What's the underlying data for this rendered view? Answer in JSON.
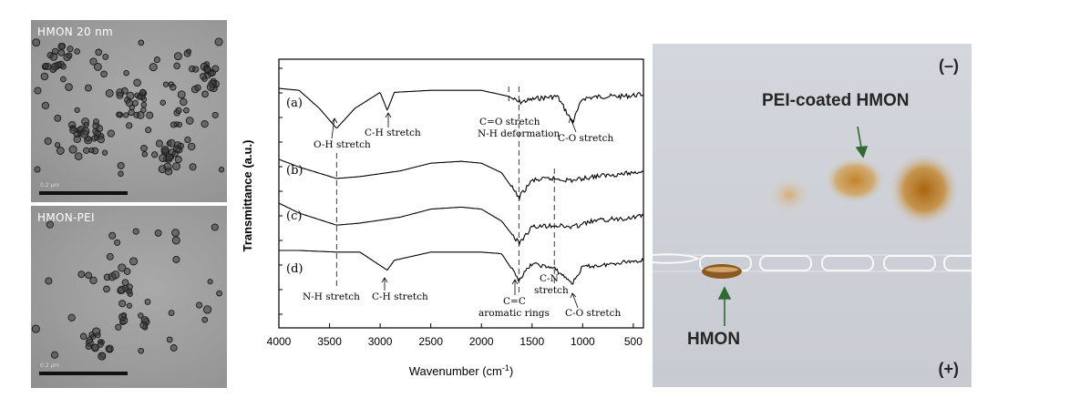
{
  "tem_panels": {
    "top": {
      "label": "HMON 20 nm",
      "scale_text": "0.2 μm"
    },
    "bottom": {
      "label": "HMON-PEI",
      "scale_text": "0.2 μm"
    }
  },
  "ftir": {
    "ylabel": "Transmittance (a.u.)",
    "xlabel_main": "Wavenumber (cm",
    "xlabel_sup": "-1",
    "xlabel_end": ")",
    "x_ticks": [
      "4000",
      "3500",
      "3000",
      "2500",
      "2000",
      "1500",
      "1000",
      "500"
    ],
    "spectrum_labels": [
      "(a)",
      "(b)",
      "(c)",
      "(d)"
    ],
    "annotations": {
      "oh_stretch": "O-H stretch",
      "ch_stretch_a": "C-H stretch",
      "co_stretch_a_l1": "C=O stretch",
      "co_stretch_a_l2": "N-H deformation",
      "c_o_stretch_a": "C-O stretch",
      "nh_stretch_d": "N-H stretch",
      "ch_stretch_d": "C-H stretch",
      "cc_d_l1": "C=C",
      "cc_d_l2": "aromatic rings",
      "cn_d_l1": "C-N",
      "cn_d_l2": "stretch",
      "c_o_stretch_d": "C-O stretch"
    }
  },
  "chart_data": {
    "type": "line",
    "xlabel": "Wavenumber (cm-1)",
    "ylabel": "Transmittance (a.u.)",
    "xlim": [
      4000,
      400
    ],
    "x_ticks": [
      4000,
      3500,
      3000,
      2500,
      2000,
      1500,
      1000,
      500
    ],
    "dashed_guides_cm1": [
      3430,
      1730,
      1630,
      1280
    ],
    "series": [
      {
        "name": "(a)",
        "x": [
          4000,
          3800,
          3600,
          3430,
          3250,
          3000,
          2930,
          2860,
          2500,
          2000,
          1730,
          1630,
          1450,
          1250,
          1100,
          1000,
          800,
          600,
          400
        ],
        "values": [
          0.0,
          0.05,
          0.5,
          1.0,
          0.5,
          0.1,
          0.55,
          0.1,
          0.05,
          0.05,
          0.2,
          0.35,
          0.25,
          0.2,
          0.85,
          0.25,
          0.2,
          0.2,
          0.15
        ]
      },
      {
        "name": "(b)",
        "x": [
          4000,
          3800,
          3430,
          3200,
          2800,
          2500,
          2200,
          2000,
          1800,
          1630,
          1500,
          1300,
          1100,
          900,
          700,
          500,
          400
        ],
        "values": [
          0.0,
          0.2,
          0.5,
          0.45,
          0.3,
          0.1,
          0.05,
          0.1,
          0.35,
          1.0,
          0.55,
          0.5,
          0.55,
          0.45,
          0.4,
          0.35,
          0.3
        ]
      },
      {
        "name": "(c)",
        "x": [
          4000,
          3800,
          3430,
          3200,
          2800,
          2500,
          2200,
          2000,
          1800,
          1630,
          1500,
          1300,
          1100,
          900,
          700,
          500,
          400
        ],
        "values": [
          0.0,
          0.25,
          0.55,
          0.5,
          0.35,
          0.15,
          0.1,
          0.15,
          0.45,
          1.0,
          0.6,
          0.55,
          0.6,
          0.45,
          0.4,
          0.35,
          0.3
        ]
      },
      {
        "name": "(d)",
        "x": [
          4000,
          3800,
          3430,
          3200,
          2930,
          2860,
          2500,
          2000,
          1800,
          1630,
          1500,
          1280,
          1100,
          1000,
          800,
          600,
          400
        ],
        "values": [
          0.0,
          0.0,
          0.05,
          0.05,
          0.6,
          0.3,
          0.05,
          0.05,
          0.1,
          0.9,
          0.4,
          0.55,
          1.0,
          0.5,
          0.45,
          0.35,
          0.3
        ]
      }
    ]
  },
  "gel": {
    "minus_label": "(–)",
    "plus_label": "(+)",
    "pei_label": "PEI-coated HMON",
    "hmon_label": "HMON",
    "colors": {
      "band": "#c98a1a",
      "band_dark": "#9a5a10",
      "arrow": "#2f6b2f"
    }
  }
}
